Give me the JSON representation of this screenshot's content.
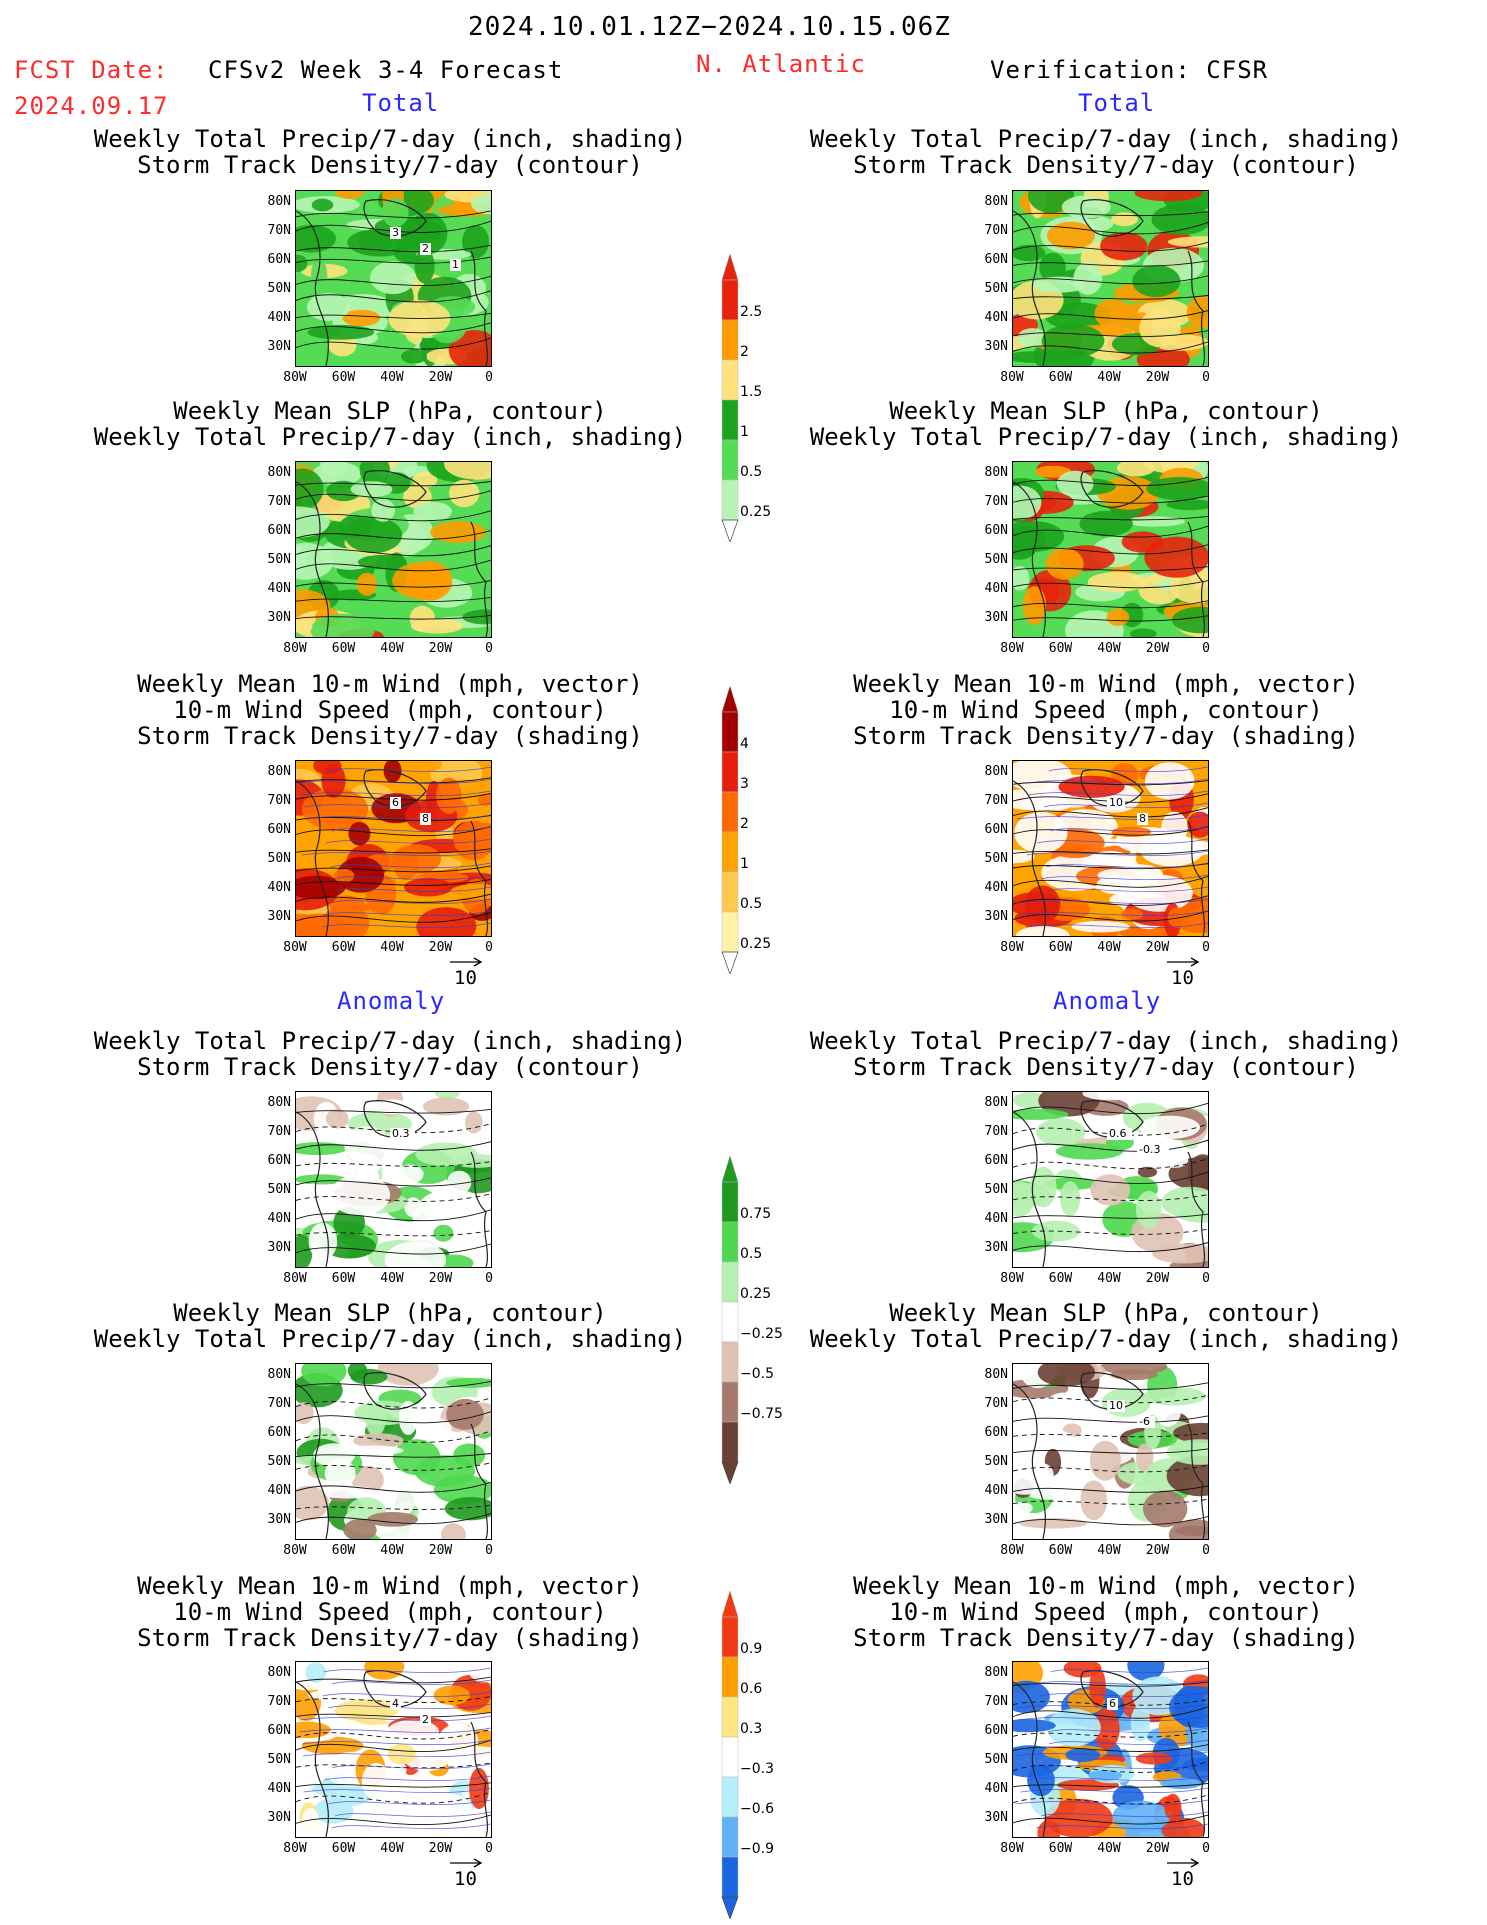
{
  "header": {
    "date_range": "2024.10.01.12Z−2024.10.15.06Z",
    "fcst_label": "FCST Date:",
    "fcst_date": "2024.09.17",
    "model_title": "CFSv2 Week 3-4 Forecast",
    "region": "N. Atlantic",
    "verification": "Verification: CFSR"
  },
  "sections": {
    "total": "Total",
    "anomaly": "Anomaly"
  },
  "titles": {
    "precip_track": [
      "Weekly Total Precip/7-day (inch, shading)",
      "Storm Track Density/7-day (contour)"
    ],
    "slp_precip": [
      "Weekly Mean SLP (hPa, contour)",
      "Weekly Total Precip/7-day (inch, shading)"
    ],
    "wind_track": [
      "Weekly Mean 10-m Wind (mph, vector)",
      "10-m Wind Speed (mph, contour)",
      "Storm Track Density/7-day (shading)"
    ]
  },
  "axes": {
    "lat": [
      "80N",
      "70N",
      "60N",
      "50N",
      "40N",
      "30N"
    ],
    "lon": [
      "80W",
      "60W",
      "40W",
      "20W",
      "0"
    ]
  },
  "vector_ref": "10",
  "colorbars": {
    "precip_total": {
      "labels": [
        "2.5",
        "2",
        "1.5",
        "1",
        "0.5",
        "0.25"
      ],
      "colors": [
        "#e8230c",
        "#ff9b00",
        "#ffe27d",
        "#1da31d",
        "#55dc55",
        "#b7f5b4"
      ]
    },
    "track_total": {
      "labels": [
        "4",
        "3",
        "2",
        "1",
        "0.5",
        "0.25"
      ],
      "colors": [
        "#a50000",
        "#e61e0a",
        "#ff6a00",
        "#ffa300",
        "#ffc94d",
        "#fff2a8"
      ]
    },
    "precip_anom": {
      "labels": [
        "0.75",
        "0.5",
        "0.25",
        "−0.25",
        "−0.5",
        "−0.75"
      ],
      "colors": [
        "#1e9a1e",
        "#4fd84f",
        "#b5f0b0",
        "#ffffff",
        "#e0c2b5",
        "#a57a6c",
        "#6a3f34"
      ]
    },
    "track_anom": {
      "labels": [
        "0.9",
        "0.6",
        "0.3",
        "−0.3",
        "−0.6",
        "−0.9"
      ],
      "colors": [
        "#f03a14",
        "#ff9e00",
        "#ffe682",
        "#ffffff",
        "#b4eefa",
        "#5fb2f6",
        "#1a66e0"
      ]
    }
  },
  "contour_labels": {
    "p1": [
      "3",
      "2",
      "1"
    ],
    "p3": [
      "6",
      "8"
    ],
    "p4": [
      "0.3"
    ],
    "p6": [
      "4",
      "2"
    ],
    "q3": [
      "10",
      "8"
    ],
    "q4": [
      "0.6",
      "-0.3"
    ],
    "q5": [
      "10",
      "-6"
    ],
    "q6": [
      "6"
    ]
  }
}
